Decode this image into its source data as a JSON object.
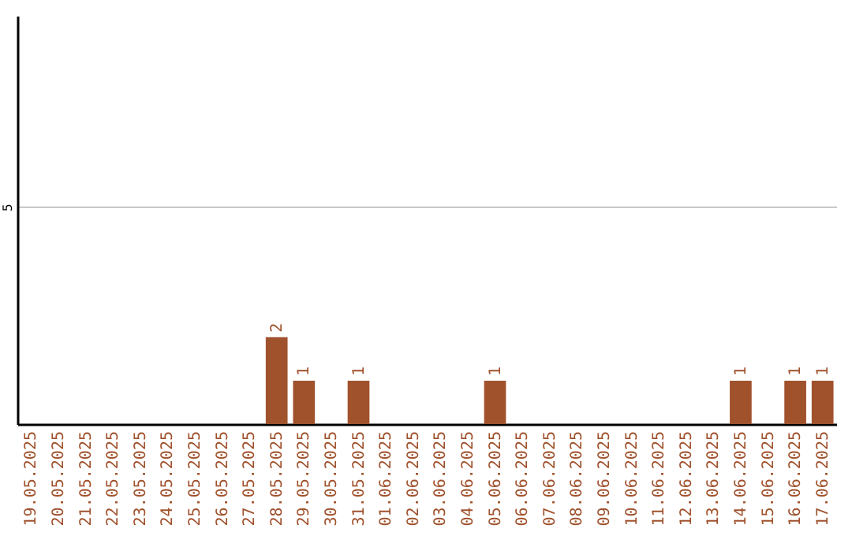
{
  "chart_data": {
    "type": "bar",
    "categories": [
      "19.05.2025",
      "20.05.2025",
      "21.05.2025",
      "22.05.2025",
      "23.05.2025",
      "24.05.2025",
      "25.05.2025",
      "26.05.2025",
      "27.05.2025",
      "28.05.2025",
      "29.05.2025",
      "30.05.2025",
      "31.05.2025",
      "01.06.2025",
      "02.06.2025",
      "03.06.2025",
      "04.06.2025",
      "05.06.2025",
      "06.06.2025",
      "07.06.2025",
      "08.06.2025",
      "09.06.2025",
      "10.06.2025",
      "11.06.2025",
      "12.06.2025",
      "13.06.2025",
      "14.06.2025",
      "15.06.2025",
      "16.06.2025",
      "17.06.2025"
    ],
    "values": [
      0,
      0,
      0,
      0,
      0,
      0,
      0,
      0,
      0,
      2,
      1,
      0,
      1,
      0,
      0,
      0,
      0,
      1,
      0,
      0,
      0,
      0,
      0,
      0,
      0,
      0,
      1,
      0,
      1,
      1
    ],
    "value_labels": [
      null,
      null,
      null,
      null,
      null,
      null,
      null,
      null,
      null,
      "2",
      "1",
      null,
      "1",
      null,
      null,
      null,
      null,
      "1",
      null,
      null,
      null,
      null,
      null,
      null,
      null,
      null,
      "1",
      null,
      "1",
      "1"
    ],
    "color": "#a0522d",
    "ylim": [
      0,
      9.4
    ],
    "yticks": [
      5
    ],
    "grid": "y"
  }
}
